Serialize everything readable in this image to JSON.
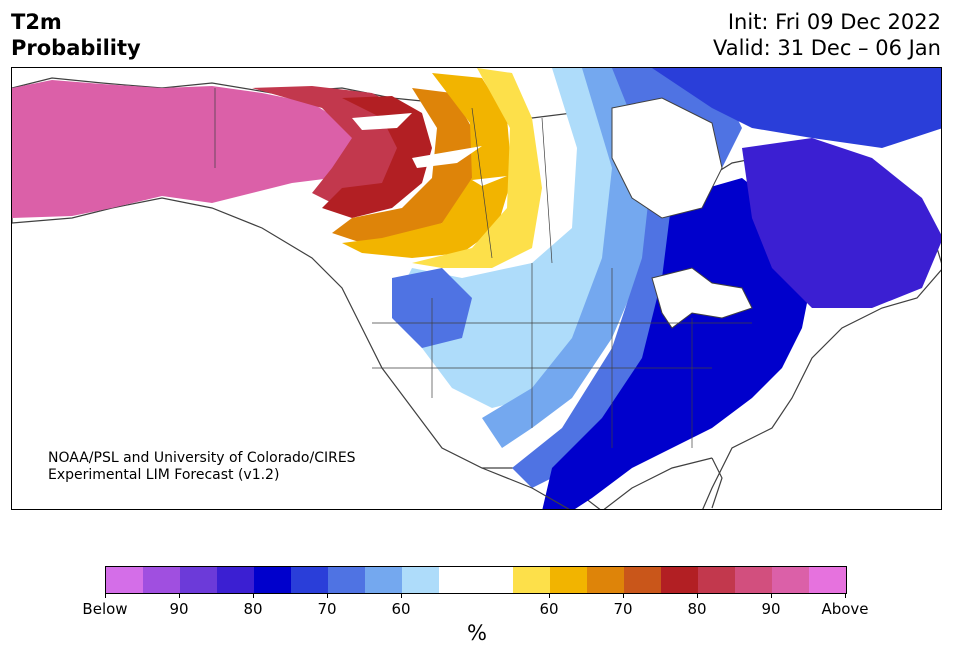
{
  "title": {
    "left": [
      "T2m",
      "Probability"
    ],
    "right": [
      "Init: Fri 09 Dec 2022",
      "Valid: 31 Dec – 06 Jan"
    ]
  },
  "credit": [
    "NOAA/PSL and University of Colorado/CIRES",
    "Experimental LIM Forecast (v1.2)"
  ],
  "colorbar": {
    "colors": [
      "#d46ee8",
      "#a04fe0",
      "#6c3ad9",
      "#3b1fd2",
      "#0000cc",
      "#2a3ed9",
      "#4f73e3",
      "#74a8ef",
      "#aedcfa",
      "#ffffff",
      "#ffffff",
      "#fde04a",
      "#f2b400",
      "#de8409",
      "#c9561a",
      "#b21f23",
      "#c2384d",
      "#d24f7e",
      "#db60a8",
      "#e672de"
    ],
    "ticks": [
      "Below",
      "90",
      "80",
      "70",
      "60",
      "60",
      "70",
      "80",
      "90",
      "Above"
    ],
    "unit": "%"
  },
  "map": {
    "ocean_color": "#ffffff",
    "coast_color": "#404040",
    "lake_color": "#ffffff"
  }
}
